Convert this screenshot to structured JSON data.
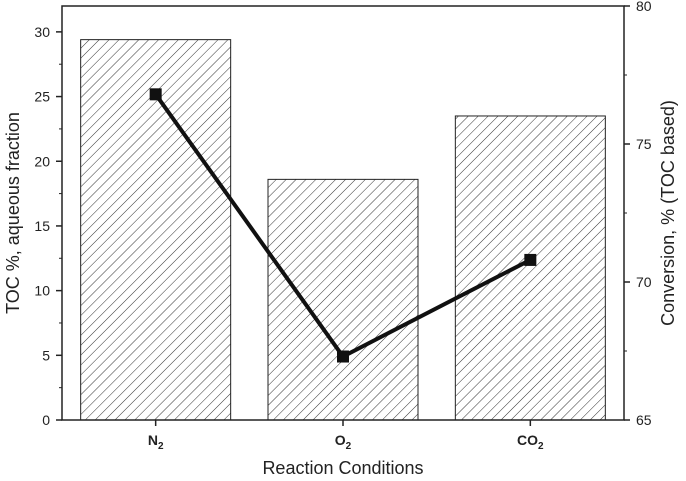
{
  "chart_data": {
    "type": "bar",
    "categories": [
      {
        "base": "N",
        "sub": "2"
      },
      {
        "base": "O",
        "sub": "2"
      },
      {
        "base": "CO",
        "sub": "2"
      }
    ],
    "xlabel": "Reaction Conditions",
    "ylabel_left": "TOC %, aqueous fraction",
    "ylabel_right": "Conversion, % (TOC based)",
    "ylim_left": [
      0,
      32
    ],
    "ylim_right": [
      65,
      80
    ],
    "left_ticks": [
      0,
      5,
      10,
      15,
      20,
      25,
      30
    ],
    "right_ticks": [
      65,
      70,
      75,
      80
    ],
    "series": [
      {
        "type": "bar",
        "axis": "left",
        "values": [
          29.4,
          18.6,
          23.5
        ],
        "fill": "hatched"
      },
      {
        "type": "line",
        "axis": "right",
        "values": [
          76.8,
          67.3,
          70.8
        ],
        "marker": "square",
        "color": "#111111"
      }
    ],
    "grid": false
  }
}
